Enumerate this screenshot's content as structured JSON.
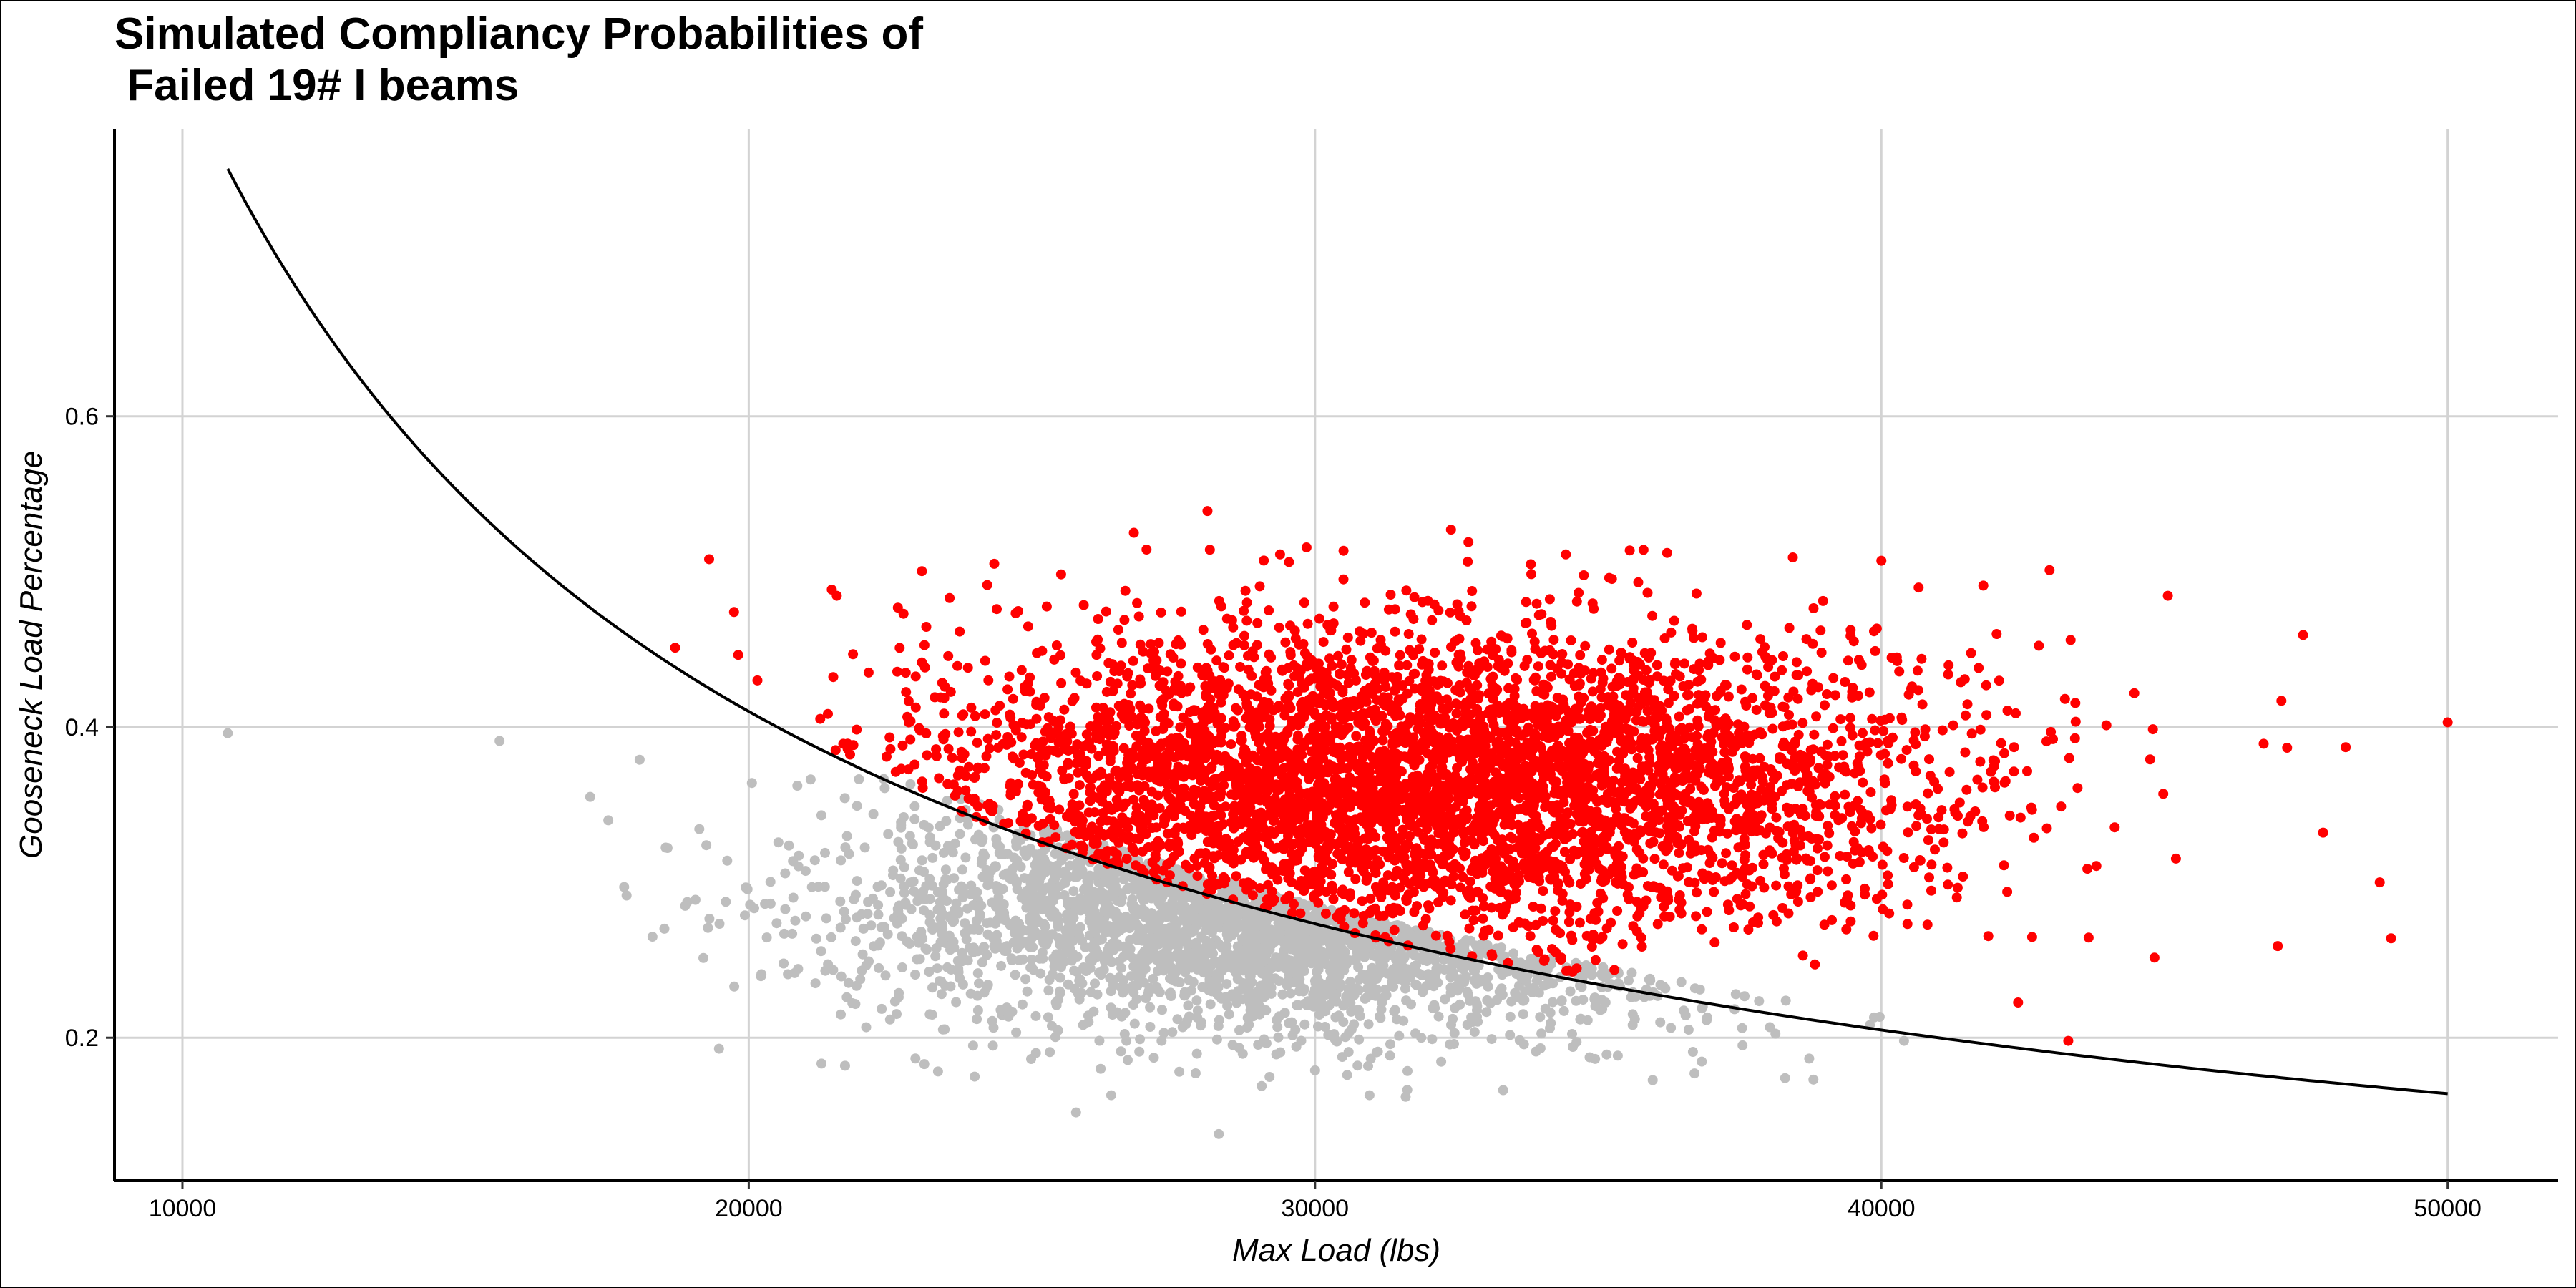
{
  "chart_data": {
    "type": "scatter",
    "title": "Simulated Compliancy Probabilities of\n Failed 19# I beams",
    "xlabel": "Max Load (lbs)",
    "ylabel": "Gooseneck Load Percentage",
    "xlim": [
      8800,
      51950
    ],
    "ylim": [
      0.108,
      0.785
    ],
    "x_ticks": [
      10000,
      20000,
      30000,
      40000,
      50000
    ],
    "x_tick_labels": [
      "10000",
      "20000",
      "30000",
      "40000",
      "50000"
    ],
    "y_ticks": [
      0.2,
      0.4,
      0.6
    ],
    "y_tick_labels": [
      "0.2",
      "0.4",
      "0.6"
    ],
    "grid": true,
    "legend": "none",
    "colors": {
      "compliant": "#bebebe",
      "non_compliant": "#ff0000",
      "curve": "#000000",
      "grid": "#d3d3d3",
      "axis": "#000000"
    },
    "threshold_curve": {
      "equation": "y = 8200 / x",
      "x_range": [
        10800,
        50000
      ]
    },
    "series": [
      {
        "class": "compliant",
        "cloud": {
          "mean_x": 30500,
          "mean_y": 0.29,
          "sd_x": 4000,
          "sd_y": 0.04,
          "n": 2600
        },
        "points": [
          {
            "x": 10800,
            "y": 0.396
          },
          {
            "x": 15600,
            "y": 0.391
          },
          {
            "x": 17200,
            "y": 0.355
          },
          {
            "x": 17800,
            "y": 0.297
          },
          {
            "x": 18300,
            "y": 0.265
          },
          {
            "x": 21700,
            "y": 0.182
          },
          {
            "x": 23100,
            "y": 0.183
          },
          {
            "x": 26400,
            "y": 0.163
          },
          {
            "x": 28300,
            "y": 0.138
          },
          {
            "x": 30000,
            "y": 0.179
          },
          {
            "x": 31600,
            "y": 0.162
          },
          {
            "x": 36700,
            "y": 0.177
          },
          {
            "x": 38300,
            "y": 0.174
          },
          {
            "x": 38800,
            "y": 0.173
          },
          {
            "x": 40400,
            "y": 0.198
          }
        ]
      },
      {
        "class": "non-compliant",
        "cloud": {
          "mean_x": 32000,
          "mean_y": 0.365,
          "sd_x": 4500,
          "sd_y": 0.05,
          "n": 4600
        },
        "points": [
          {
            "x": 18700,
            "y": 0.451
          },
          {
            "x": 19300,
            "y": 0.508
          },
          {
            "x": 26800,
            "y": 0.525
          },
          {
            "x": 28100,
            "y": 0.539
          },
          {
            "x": 32400,
            "y": 0.527
          },
          {
            "x": 35800,
            "y": 0.514
          },
          {
            "x": 40000,
            "y": 0.507
          },
          {
            "x": 41800,
            "y": 0.491
          },
          {
            "x": 43300,
            "y": 0.198
          },
          {
            "x": 47000,
            "y": 0.259
          },
          {
            "x": 47800,
            "y": 0.332
          },
          {
            "x": 48200,
            "y": 0.387
          },
          {
            "x": 48800,
            "y": 0.3
          },
          {
            "x": 49000,
            "y": 0.264
          },
          {
            "x": 50000,
            "y": 0.403
          }
        ]
      }
    ]
  }
}
